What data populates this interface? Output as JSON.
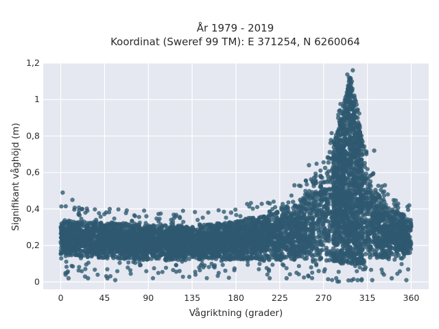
{
  "chart_data": {
    "type": "scatter",
    "title": [
      "År 1979 - 2019",
      "Koordinat (Sweref 99 TM): E 371254, N 6260064"
    ],
    "xlabel": "Vågriktning (grader)",
    "ylabel": "Signifikant våghöjd (m)",
    "xlim": [
      -18,
      378
    ],
    "ylim": [
      -0.04,
      1.2
    ],
    "xticks": [
      0,
      45,
      90,
      135,
      180,
      225,
      270,
      315,
      360
    ],
    "xtick_labels": [
      "0",
      "45",
      "90",
      "135",
      "180",
      "225",
      "270",
      "315",
      "360"
    ],
    "yticks": [
      0,
      0.2,
      0.4,
      0.6,
      0.8,
      1,
      1.2
    ],
    "ytick_labels": [
      "0",
      "0,2",
      "0,4",
      "0,6",
      "0,8",
      "1",
      "1,2"
    ],
    "grid": true,
    "background_color": "#e5e8f0",
    "marker_color": "#2e5870",
    "series": [
      {
        "envelope": [
          {
            "x": 0,
            "y_min": 0.15,
            "y_max": 0.34
          },
          {
            "x": 45,
            "y_min": 0.13,
            "y_max": 0.33
          },
          {
            "x": 90,
            "y_min": 0.12,
            "y_max": 0.31
          },
          {
            "x": 135,
            "y_min": 0.12,
            "y_max": 0.31
          },
          {
            "x": 180,
            "y_min": 0.12,
            "y_max": 0.33
          },
          {
            "x": 225,
            "y_min": 0.12,
            "y_max": 0.4
          },
          {
            "x": 250,
            "y_min": 0.12,
            "y_max": 0.48
          },
          {
            "x": 270,
            "y_min": 0.12,
            "y_max": 0.62
          },
          {
            "x": 285,
            "y_min": 0.1,
            "y_max": 0.85
          },
          {
            "x": 297,
            "y_min": 0.1,
            "y_max": 1.15
          },
          {
            "x": 305,
            "y_min": 0.1,
            "y_max": 0.95
          },
          {
            "x": 315,
            "y_min": 0.1,
            "y_max": 0.6
          },
          {
            "x": 330,
            "y_min": 0.13,
            "y_max": 0.45
          },
          {
            "x": 360,
            "y_min": 0.15,
            "y_max": 0.34
          }
        ],
        "outliers": [
          {
            "x": 2,
            "y": 0.49
          },
          {
            "x": 12,
            "y": 0.45
          },
          {
            "x": 22,
            "y": 0.4
          },
          {
            "x": 5,
            "y": 0.04
          },
          {
            "x": 8,
            "y": 0.02
          },
          {
            "x": 25,
            "y": 0.03
          },
          {
            "x": 28,
            "y": 0.02
          },
          {
            "x": 48,
            "y": 0.02
          },
          {
            "x": 56,
            "y": 0.01
          },
          {
            "x": 88,
            "y": 0.36
          },
          {
            "x": 122,
            "y": 0.06
          },
          {
            "x": 175,
            "y": 0.38
          },
          {
            "x": 196,
            "y": 0.34
          },
          {
            "x": 240,
            "y": 0.53
          },
          {
            "x": 255,
            "y": 0.64
          },
          {
            "x": 262,
            "y": 0.58
          },
          {
            "x": 285,
            "y": 0.9
          },
          {
            "x": 293,
            "y": 1.0
          },
          {
            "x": 300,
            "y": 1.16
          },
          {
            "x": 322,
            "y": 0.72
          },
          {
            "x": 333,
            "y": 0.53
          },
          {
            "x": 345,
            "y": 0.42
          },
          {
            "x": 358,
            "y": 0.42
          },
          {
            "x": 355,
            "y": 0.01
          },
          {
            "x": 340,
            "y": 0.02
          },
          {
            "x": 320,
            "y": 0.01
          },
          {
            "x": 305,
            "y": 0.01
          },
          {
            "x": 283,
            "y": 0.02
          },
          {
            "x": 265,
            "y": 0.06
          },
          {
            "x": 232,
            "y": 0.02
          }
        ]
      }
    ]
  }
}
